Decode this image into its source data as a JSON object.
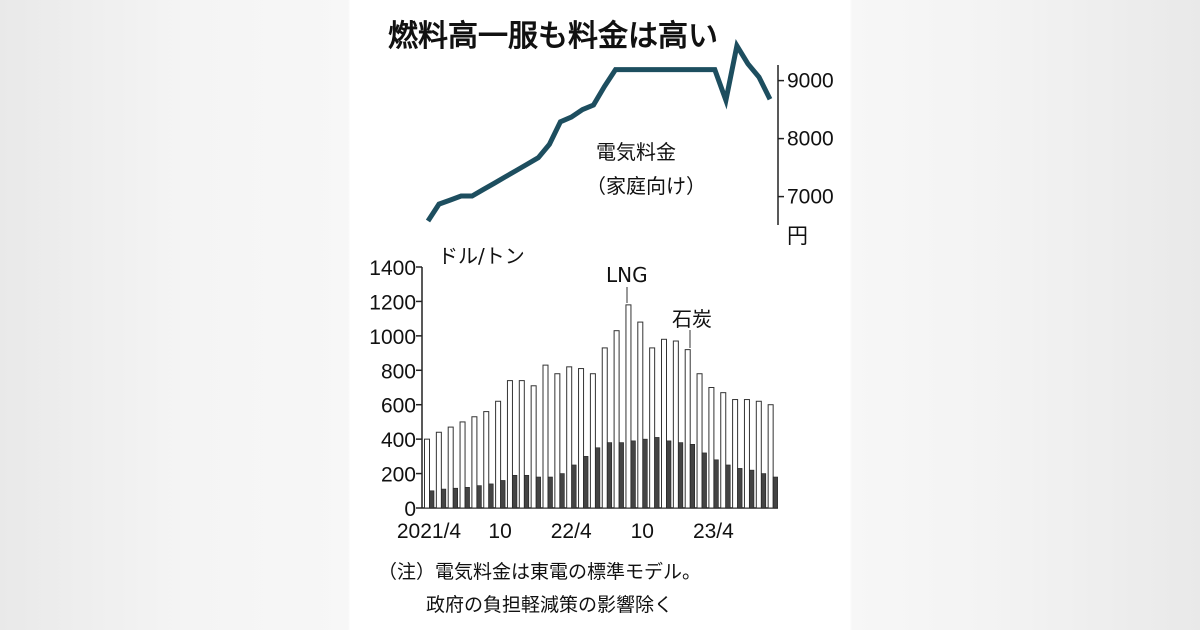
{
  "title": "燃料高一服も料金は高い",
  "note_line1": "（注）電気料金は東電の標準モデル。",
  "note_line2": "政府の負担軽減策の影響除く",
  "chart_data": [
    {
      "type": "line",
      "series": [
        {
          "name": "電気料金（家庭向け）",
          "label_line1": "電気料金",
          "label_line2": "（家庭向け）",
          "color": "#1d4e5f",
          "values": [
            6580,
            6870,
            6940,
            7010,
            7010,
            7120,
            7230,
            7340,
            7450,
            7560,
            7670,
            7900,
            8290,
            8370,
            8500,
            8580,
            8900,
            9190,
            9190,
            9190,
            9190,
            9190,
            9190,
            9190,
            9190,
            9190,
            9190,
            8660,
            9600,
            9290,
            9060,
            8680
          ]
        }
      ],
      "ylim": [
        6200,
        9700
      ],
      "yticks": [
        "9000",
        "8000",
        "7000"
      ],
      "yunit": "円"
    },
    {
      "type": "bar",
      "ylabel": "ドル/トン",
      "ylim": [
        0,
        1400
      ],
      "yticks": [
        "1400",
        "1200",
        "1000",
        "800",
        "600",
        "400",
        "200",
        "0"
      ],
      "xtick_labels": [
        "2021/4",
        "10",
        "22/4",
        "10",
        "23/4"
      ],
      "series": [
        {
          "name": "LNG",
          "color": "#ffffff",
          "values": [
            400,
            440,
            470,
            500,
            530,
            560,
            620,
            740,
            740,
            710,
            830,
            780,
            820,
            810,
            780,
            930,
            1030,
            1180,
            1080,
            930,
            980,
            970,
            920,
            780,
            700,
            670,
            630,
            630,
            620,
            600
          ]
        },
        {
          "name": "石炭",
          "color": "#444444",
          "values": [
            100,
            110,
            115,
            120,
            130,
            140,
            160,
            190,
            190,
            180,
            180,
            200,
            250,
            300,
            350,
            380,
            380,
            390,
            400,
            410,
            390,
            380,
            370,
            320,
            280,
            250,
            230,
            220,
            200,
            180
          ]
        }
      ]
    }
  ]
}
